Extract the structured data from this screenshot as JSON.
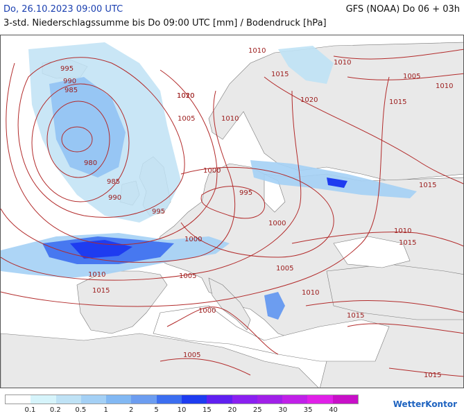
{
  "header": {
    "date": "Do, 26.10.2023 09:00 UTC",
    "model": "GFS (NOAA) Do 06 + 03h",
    "subtitle": "3-std. Niederschlagssumme bis Do 09:00 UTC [mm] / Bodendruck [hPa]"
  },
  "isobar_labels": [
    "995",
    "990",
    "985",
    "980",
    "985",
    "990",
    "995",
    "1000",
    "1005",
    "1010",
    "1015",
    "1020",
    "1010",
    "1005",
    "1000",
    "1010",
    "1015",
    "1010",
    "1005",
    "1000",
    "995",
    "1000",
    "1005",
    "1010",
    "1015",
    "1010",
    "1015",
    "1005",
    "1010",
    "1015",
    "1020",
    "1010",
    "1015",
    "1015"
  ],
  "legend": {
    "colors": [
      "#ffffff",
      "#d6f4fb",
      "#bfe2f5",
      "#a4d0f5",
      "#82b8f3",
      "#6c9df0",
      "#3c6ef0",
      "#1e3cf0",
      "#6020f0",
      "#8a20f0",
      "#a020e8",
      "#c020e8",
      "#e020e8",
      "#c810c8"
    ],
    "labels": [
      "0.1",
      "0.2",
      "0.5",
      "1",
      "2",
      "5",
      "10",
      "15",
      "20",
      "25",
      "30",
      "35",
      "40"
    ]
  },
  "logo": "WetterKontor"
}
